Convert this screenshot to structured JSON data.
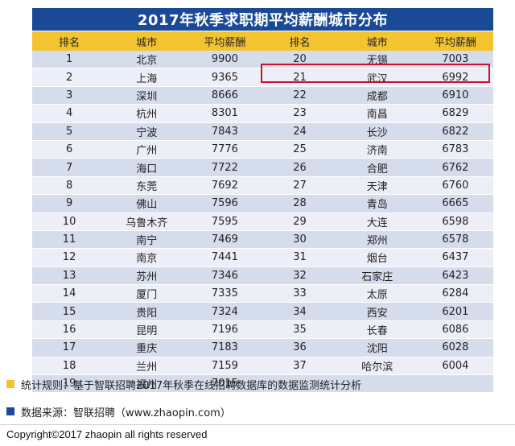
{
  "title": "2017年秋季求职期平均薪酬城市分布",
  "headers": {
    "rank": "排名",
    "city": "城市",
    "salary": "平均薪酬"
  },
  "left_rows": [
    {
      "rank": "1",
      "city": "北京",
      "salary": "9900"
    },
    {
      "rank": "2",
      "city": "上海",
      "salary": "9365"
    },
    {
      "rank": "3",
      "city": "深圳",
      "salary": "8666"
    },
    {
      "rank": "4",
      "city": "杭州",
      "salary": "8301"
    },
    {
      "rank": "5",
      "city": "宁波",
      "salary": "7843"
    },
    {
      "rank": "6",
      "city": "广州",
      "salary": "7776"
    },
    {
      "rank": "7",
      "city": "海口",
      "salary": "7722"
    },
    {
      "rank": "8",
      "city": "东莞",
      "salary": "7692"
    },
    {
      "rank": "9",
      "city": "佛山",
      "salary": "7596"
    },
    {
      "rank": "10",
      "city": "乌鲁木齐",
      "salary": "7595"
    },
    {
      "rank": "11",
      "city": "南宁",
      "salary": "7469"
    },
    {
      "rank": "12",
      "city": "南京",
      "salary": "7441"
    },
    {
      "rank": "13",
      "city": "苏州",
      "salary": "7346"
    },
    {
      "rank": "14",
      "city": "厦门",
      "salary": "7335"
    },
    {
      "rank": "15",
      "city": "贵阳",
      "salary": "7324"
    },
    {
      "rank": "16",
      "city": "昆明",
      "salary": "7196"
    },
    {
      "rank": "17",
      "city": "重庆",
      "salary": "7183"
    },
    {
      "rank": "18",
      "city": "兰州",
      "salary": "7159"
    },
    {
      "rank": "19",
      "city": "福州",
      "salary": "7015"
    }
  ],
  "right_rows": [
    {
      "rank": "20",
      "city": "无锡",
      "salary": "7003"
    },
    {
      "rank": "21",
      "city": "武汉",
      "salary": "6992"
    },
    {
      "rank": "22",
      "city": "成都",
      "salary": "6910"
    },
    {
      "rank": "23",
      "city": "南昌",
      "salary": "6829"
    },
    {
      "rank": "24",
      "city": "长沙",
      "salary": "6822"
    },
    {
      "rank": "25",
      "city": "济南",
      "salary": "6783"
    },
    {
      "rank": "26",
      "city": "合肥",
      "salary": "6762"
    },
    {
      "rank": "27",
      "city": "天津",
      "salary": "6760"
    },
    {
      "rank": "28",
      "city": "青岛",
      "salary": "6665"
    },
    {
      "rank": "29",
      "city": "大连",
      "salary": "6598"
    },
    {
      "rank": "30",
      "city": "郑州",
      "salary": "6578"
    },
    {
      "rank": "31",
      "city": "烟台",
      "salary": "6437"
    },
    {
      "rank": "32",
      "city": "石家庄",
      "salary": "6423"
    },
    {
      "rank": "33",
      "city": "太原",
      "salary": "6284"
    },
    {
      "rank": "34",
      "city": "西安",
      "salary": "6201"
    },
    {
      "rank": "35",
      "city": "长春",
      "salary": "6086"
    },
    {
      "rank": "36",
      "city": "沈阳",
      "salary": "6028"
    },
    {
      "rank": "37",
      "city": "哈尔滨",
      "salary": "6004"
    },
    {
      "rank": "",
      "city": "",
      "salary": ""
    }
  ],
  "highlighted_rank": "21",
  "notes": {
    "rule": "统计规则：基于智联招聘2017年秋季在线招聘数据库的数据监测统计分析",
    "source": "数据来源：智联招聘（www.zhaopin.com）"
  },
  "copyright": "Copyright©2017 zhaopin all rights reserved",
  "colors": {
    "title_bg": "#1a4a96",
    "header_bg": "#f4c430",
    "row_dark": "#d5dcec",
    "row_light": "#eceff7",
    "highlight_border": "#c8102e",
    "note_rule_square": "#f4c430",
    "note_source_square": "#1a4a96"
  }
}
